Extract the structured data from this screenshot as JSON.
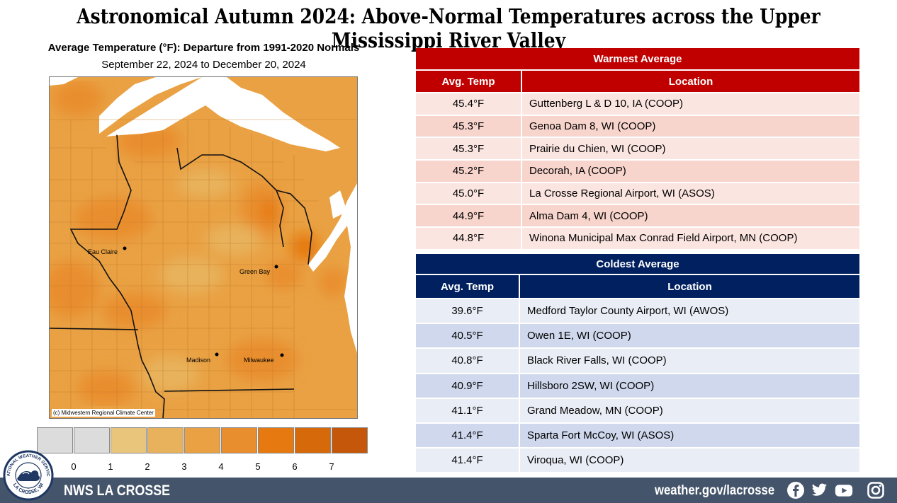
{
  "title": "Astronomical Autumn 2024:  Above-Normal Temperatures across the Upper Mississippi River Valley",
  "map": {
    "title": "Average Temperature (°F): Departure from 1991-2020 Normals",
    "subtitle": "September 22, 2024 to December 20, 2024",
    "credit": "(c) Midwestern Regional Climate Center",
    "cities": [
      "Eau Claire",
      "Green Bay",
      "Madison",
      "Milwaukee"
    ],
    "scale": {
      "colors": [
        "#dcdcdc",
        "#dcdcdc",
        "#e9c57b",
        "#e8b25c",
        "#e9a143",
        "#e98e2e",
        "#e67a10",
        "#d66a0b",
        "#c45709"
      ],
      "labels": [
        "0",
        "1",
        "2",
        "3",
        "4",
        "5",
        "6",
        "7"
      ]
    }
  },
  "warmest": {
    "header": "Warmest  Average",
    "col_temp": "Avg. Temp",
    "col_location": "Location",
    "color": "#c00000",
    "rows": [
      {
        "temp": "45.4°F",
        "location": "Guttenberg L & D 10, IA (COOP)"
      },
      {
        "temp": "45.3°F",
        "location": "Genoa Dam 8, WI (COOP)"
      },
      {
        "temp": "45.3°F",
        "location": "Prairie du Chien, WI (COOP)"
      },
      {
        "temp": "45.2°F",
        "location": "Decorah, IA (COOP)"
      },
      {
        "temp": "45.0°F",
        "location": "La Crosse Regional Airport, WI (ASOS)"
      },
      {
        "temp": "44.9°F",
        "location": "Alma Dam 4, WI (COOP)"
      },
      {
        "temp": "44.8°F",
        "location": "Winona Municipal Max Conrad Field Airport, MN (COOP)"
      }
    ]
  },
  "coldest": {
    "header": "Coldest Average",
    "col_temp": "Avg. Temp",
    "col_location": "Location",
    "color": "#002060",
    "rows": [
      {
        "temp": "39.6°F",
        "location": "Medford Taylor County Airport, WI (AWOS)"
      },
      {
        "temp": "40.5°F",
        "location": "Owen 1E, WI (COOP)"
      },
      {
        "temp": "40.8°F",
        "location": "Black River Falls, WI (COOP)"
      },
      {
        "temp": "40.9°F",
        "location": "Hillsboro 2SW, WI (COOP)"
      },
      {
        "temp": "41.1°F",
        "location": "Grand Meadow, MN (COOP)"
      },
      {
        "temp": "41.4°F",
        "location": "Sparta Fort McCoy, WI (ASOS)"
      },
      {
        "temp": "41.4°F",
        "location": "Viroqua, WI (COOP)"
      }
    ]
  },
  "footer": {
    "office": "NWS LA CROSSE",
    "url": "weather.gov/lacrosse",
    "logo_text_top": "NATIONAL WEATHER SERVICE",
    "logo_text_bottom": "LA CROSSE, WI",
    "icons": [
      "facebook-icon",
      "twitter-icon",
      "youtube-icon",
      "instagram-icon"
    ]
  }
}
